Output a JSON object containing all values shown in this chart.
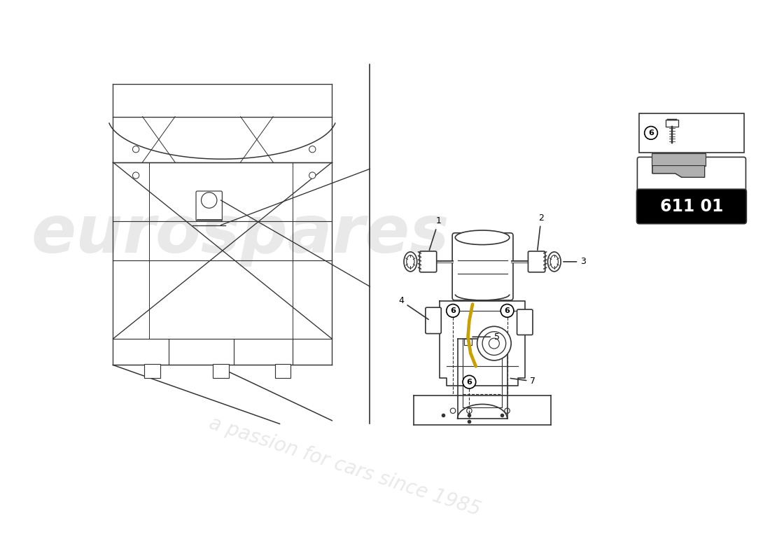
{
  "bg_color": "#ffffff",
  "watermark_text1": "eurospares",
  "watermark_text2": "a passion for cars since 1985",
  "badge_text": "611 01",
  "badge_bg": "#000000",
  "badge_text_color": "#ffffff",
  "line_color": "#333333",
  "line_width": 1.2
}
